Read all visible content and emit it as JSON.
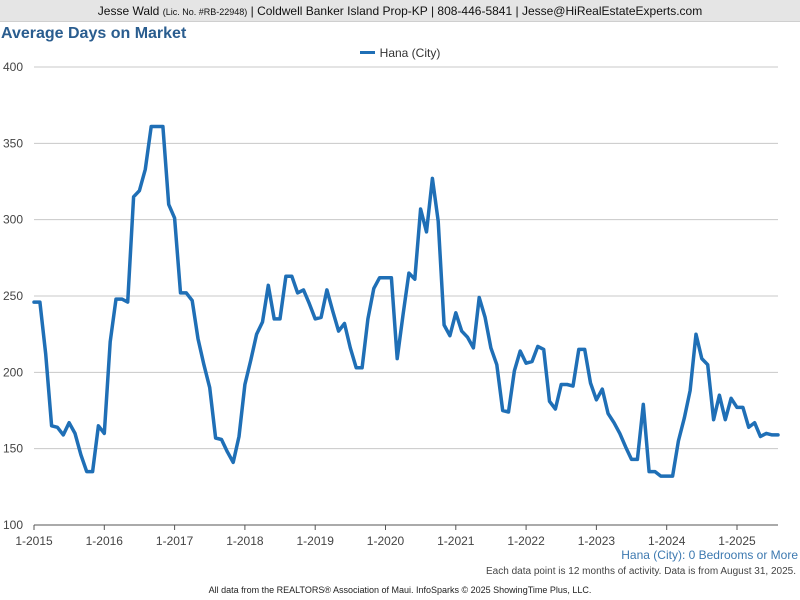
{
  "header": {
    "agent_name": "Jesse Wald",
    "license": "(Lic. No. #RB-22948)",
    "brokerage": "Coldwell Banker Island Prop-KP",
    "phone": "808-446-5841",
    "email": "Jesse@HiRealEstateExperts.com",
    "separator": "|"
  },
  "subset_label": "Hana (City): 0 Bedrooms or More",
  "footnote": "Each data point is 12 months of activity. Data is from August 31, 2025.",
  "source": "All data from the REALTORS® Association of Maui. InfoSparks © 2025 ShowingTime Plus, LLC.",
  "colors": {
    "series": "#1f6fb6",
    "title": "#2a5d8f",
    "grid": "#c8c8c8"
  },
  "chart_data": {
    "type": "line",
    "title": "Average Days on Market",
    "xlabel": "",
    "ylabel": "",
    "ylim": [
      100,
      400
    ],
    "yticks": [
      100,
      150,
      200,
      250,
      300,
      350,
      400
    ],
    "ytick_labels": [
      "100",
      "150",
      "200",
      "250",
      "300",
      "350",
      "400"
    ],
    "xticks": [
      "2015-01",
      "2016-01",
      "2017-01",
      "2018-01",
      "2019-01",
      "2020-01",
      "2021-01",
      "2022-01",
      "2023-01",
      "2024-01",
      "2025-01"
    ],
    "xtick_labels": [
      "1-2015",
      "1-2016",
      "1-2017",
      "1-2018",
      "1-2019",
      "1-2020",
      "1-2021",
      "1-2022",
      "1-2023",
      "1-2024",
      "1-2025"
    ],
    "xlim": [
      "2015-01",
      "2025-08"
    ],
    "grid": "horizontal",
    "legend_placement": "top-center",
    "series": [
      {
        "name": "Hana (City)",
        "x": [
          "2015-01",
          "2015-02",
          "2015-03",
          "2015-04",
          "2015-05",
          "2015-06",
          "2015-07",
          "2015-08",
          "2015-09",
          "2015-10",
          "2015-11",
          "2015-12",
          "2016-01",
          "2016-02",
          "2016-03",
          "2016-04",
          "2016-05",
          "2016-06",
          "2016-07",
          "2016-08",
          "2016-09",
          "2016-10",
          "2016-11",
          "2016-12",
          "2017-01",
          "2017-02",
          "2017-03",
          "2017-04",
          "2017-05",
          "2017-06",
          "2017-07",
          "2017-08",
          "2017-09",
          "2017-10",
          "2017-11",
          "2017-12",
          "2018-01",
          "2018-02",
          "2018-03",
          "2018-04",
          "2018-05",
          "2018-06",
          "2018-07",
          "2018-08",
          "2018-09",
          "2018-10",
          "2018-11",
          "2018-12",
          "2019-01",
          "2019-02",
          "2019-03",
          "2019-04",
          "2019-05",
          "2019-06",
          "2019-07",
          "2019-08",
          "2019-09",
          "2019-10",
          "2019-11",
          "2019-12",
          "2020-01",
          "2020-02",
          "2020-03",
          "2020-04",
          "2020-05",
          "2020-06",
          "2020-07",
          "2020-08",
          "2020-09",
          "2020-10",
          "2020-11",
          "2020-12",
          "2021-01",
          "2021-02",
          "2021-03",
          "2021-04",
          "2021-05",
          "2021-06",
          "2021-07",
          "2021-08",
          "2021-09",
          "2021-10",
          "2021-11",
          "2021-12",
          "2022-01",
          "2022-02",
          "2022-03",
          "2022-04",
          "2022-05",
          "2022-06",
          "2022-07",
          "2022-08",
          "2022-09",
          "2022-10",
          "2022-11",
          "2022-12",
          "2023-01",
          "2023-02",
          "2023-03",
          "2023-04",
          "2023-05",
          "2023-06",
          "2023-07",
          "2023-08",
          "2023-09",
          "2023-10",
          "2023-11",
          "2023-12",
          "2024-01",
          "2024-02",
          "2024-03",
          "2024-04",
          "2024-05",
          "2024-06",
          "2024-07",
          "2024-08",
          "2024-09",
          "2024-10",
          "2024-11",
          "2024-12",
          "2025-01",
          "2025-02",
          "2025-03",
          "2025-04",
          "2025-05",
          "2025-06",
          "2025-07",
          "2025-08"
        ],
        "values": [
          246,
          246,
          212,
          165,
          164,
          159,
          167,
          160,
          146,
          135,
          135,
          165,
          160,
          220,
          248,
          248,
          246,
          315,
          319,
          333,
          361,
          361,
          361,
          310,
          301,
          252,
          252,
          247,
          222,
          205,
          190,
          157,
          156,
          148,
          141,
          158,
          192,
          208,
          225,
          233,
          257,
          235,
          235,
          263,
          263,
          252,
          254,
          245,
          235,
          236,
          254,
          240,
          227,
          232,
          216,
          203,
          203,
          235,
          255,
          262,
          262,
          262,
          209,
          238,
          265,
          261,
          307,
          292,
          327,
          299,
          231,
          224,
          239,
          227,
          223,
          216,
          249,
          236,
          216,
          205,
          175,
          174,
          201,
          214,
          206,
          207,
          217,
          215,
          181,
          176,
          192,
          192,
          191,
          215,
          215,
          193,
          182,
          189,
          173,
          167,
          160,
          151,
          143,
          143,
          179,
          135,
          135,
          132,
          132,
          132,
          155,
          170,
          188,
          225,
          209,
          205,
          169,
          185,
          169,
          183,
          177,
          177,
          164,
          167,
          158,
          160,
          159,
          159
        ]
      }
    ]
  }
}
